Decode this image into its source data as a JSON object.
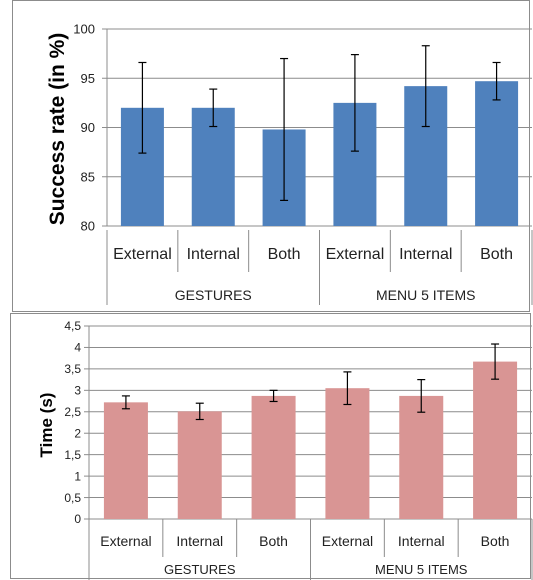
{
  "chart_data": [
    {
      "type": "bar",
      "categories": [
        "External",
        "Internal",
        "Both",
        "External",
        "Internal",
        "Both"
      ],
      "groups": [
        {
          "label": "GESTURES",
          "categories": [
            "External",
            "Internal",
            "Both"
          ]
        },
        {
          "label": "MENU 5 ITEMS",
          "categories": [
            "External",
            "Internal",
            "Both"
          ]
        }
      ],
      "values": [
        92.0,
        92.0,
        89.8,
        92.5,
        94.2,
        94.7
      ],
      "error": [
        4.6,
        1.9,
        7.2,
        4.9,
        4.1,
        1.9
      ],
      "ylabel": "Success rate (in %)",
      "ylim": [
        80,
        100
      ],
      "yticks": [
        80,
        85,
        90,
        95,
        100
      ],
      "ytick_labels": [
        "80",
        "85",
        "90",
        "95",
        "100"
      ],
      "grid": true,
      "legend": "none",
      "color": "#4f81bd"
    },
    {
      "type": "bar",
      "categories": [
        "External",
        "Internal",
        "Both",
        "External",
        "Internal",
        "Both"
      ],
      "groups": [
        {
          "label": "GESTURES",
          "categories": [
            "External",
            "Internal",
            "Both"
          ]
        },
        {
          "label": "MENU 5 ITEMS",
          "categories": [
            "External",
            "Internal",
            "Both"
          ]
        }
      ],
      "values": [
        2.72,
        2.51,
        2.87,
        3.05,
        2.87,
        3.67
      ],
      "error": [
        0.15,
        0.19,
        0.13,
        0.38,
        0.38,
        0.41
      ],
      "ylabel": "Time (s)",
      "ylim": [
        0,
        4.5
      ],
      "yticks": [
        0,
        0.5,
        1,
        1.5,
        2,
        2.5,
        3,
        3.5,
        4,
        4.5
      ],
      "ytick_labels": [
        "0",
        "0,5",
        "1",
        "1,5",
        "2",
        "2,5",
        "3",
        "3,5",
        "4",
        "4,5"
      ],
      "grid": true,
      "legend": "none",
      "color": "#d99594"
    }
  ]
}
